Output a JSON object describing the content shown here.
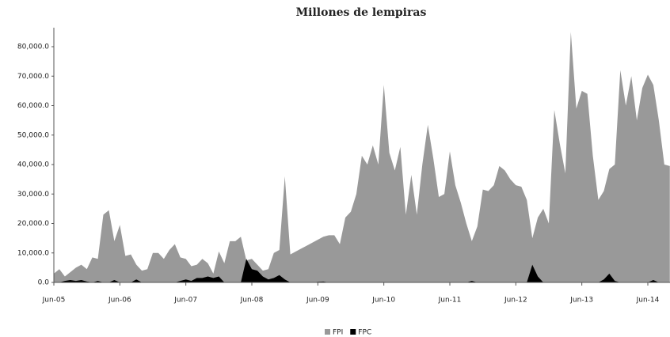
{
  "chart_data": {
    "type": "area",
    "title": "Millones de lempiras",
    "categories": [
      "Jun-05",
      null,
      null,
      null,
      null,
      null,
      null,
      null,
      null,
      null,
      null,
      null,
      "Jun-06",
      null,
      null,
      null,
      null,
      null,
      null,
      null,
      null,
      null,
      null,
      null,
      "Jun-07",
      null,
      null,
      null,
      null,
      null,
      null,
      null,
      null,
      null,
      null,
      null,
      "Jun-08",
      null,
      null,
      null,
      null,
      null,
      null,
      null,
      null,
      null,
      null,
      null,
      "Jun-09",
      null,
      null,
      null,
      null,
      null,
      null,
      null,
      null,
      null,
      null,
      null,
      "Jun-10",
      null,
      null,
      null,
      null,
      null,
      null,
      null,
      null,
      null,
      null,
      null,
      "Jun-11",
      null,
      null,
      null,
      null,
      null,
      null,
      null,
      null,
      null,
      null,
      null,
      "Jun-12",
      null,
      null,
      null,
      null,
      null,
      null,
      null,
      null,
      null,
      null,
      null,
      "Jun-13",
      null,
      null,
      null,
      null,
      null,
      null,
      null,
      null,
      null,
      null,
      null,
      "Jun-14",
      null,
      null,
      null,
      null
    ],
    "series": [
      {
        "name": "FPI",
        "color": "#999999",
        "values": [
          3000,
          4500,
          2000,
          3500,
          5000,
          6000,
          4500,
          8500,
          8000,
          23000,
          24500,
          14000,
          19500,
          9000,
          9500,
          6000,
          4000,
          4500,
          10000,
          10000,
          8000,
          11000,
          13000,
          8500,
          8000,
          5500,
          6000,
          8000,
          6500,
          3000,
          10500,
          6500,
          14000,
          14000,
          15500,
          7500,
          8000,
          6000,
          4000,
          4500,
          10000,
          11000,
          36000,
          9500,
          10500,
          11500,
          12500,
          13500,
          14500,
          15500,
          16000,
          16000,
          13000,
          22000,
          24000,
          30000,
          43000,
          40000,
          46500,
          40000,
          67000,
          44000,
          38000,
          46000,
          23000,
          36500,
          23000,
          40000,
          53500,
          42000,
          29000,
          30000,
          44500,
          33000,
          27000,
          20000,
          14000,
          19000,
          31500,
          31000,
          33000,
          39500,
          38000,
          35000,
          33000,
          32500,
          28000,
          15000,
          22000,
          25000,
          20000,
          58500,
          47000,
          37000,
          85000,
          59000,
          65000,
          64000,
          43000,
          28000,
          31000,
          38500,
          40000,
          72000,
          60000,
          70000,
          55000,
          66000,
          70500,
          67000,
          55000,
          40000,
          39500
        ]
      },
      {
        "name": "FPC",
        "color": "#000000",
        "values": [
          0,
          0,
          500,
          800,
          500,
          800,
          300,
          0,
          500,
          0,
          0,
          800,
          0,
          0,
          0,
          1000,
          0,
          0,
          0,
          0,
          0,
          0,
          0,
          500,
          1000,
          500,
          1500,
          1500,
          2000,
          1500,
          2000,
          0,
          0,
          0,
          0,
          8000,
          4500,
          4000,
          2000,
          1000,
          1500,
          2500,
          1000,
          0,
          0,
          0,
          0,
          0,
          200,
          300,
          0,
          0,
          0,
          0,
          0,
          0,
          0,
          0,
          0,
          0,
          0,
          0,
          0,
          0,
          0,
          0,
          0,
          0,
          0,
          0,
          0,
          0,
          0,
          0,
          0,
          0,
          500,
          0,
          0,
          0,
          0,
          0,
          0,
          0,
          0,
          0,
          0,
          6000,
          2000,
          0,
          0,
          0,
          0,
          0,
          0,
          0,
          0,
          0,
          0,
          0,
          1000,
          3000,
          500,
          0,
          0,
          0,
          0,
          0,
          0,
          800,
          0,
          0,
          0
        ]
      }
    ],
    "ylim": [
      0,
      80000
    ],
    "yticks": [
      {
        "value": 0,
        "label": "0.0"
      },
      {
        "value": 10000,
        "label": "10,000.0"
      },
      {
        "value": 20000,
        "label": "20,000.0"
      },
      {
        "value": 30000,
        "label": "30,000.0"
      },
      {
        "value": 40000,
        "label": "40,000.0"
      },
      {
        "value": 50000,
        "label": "50,000.0"
      },
      {
        "value": 60000,
        "label": "60,000.0"
      },
      {
        "value": 70000,
        "label": "70,000.0"
      },
      {
        "value": 80000,
        "label": "80,000.0"
      }
    ],
    "grid": false,
    "legend": "bottom"
  }
}
